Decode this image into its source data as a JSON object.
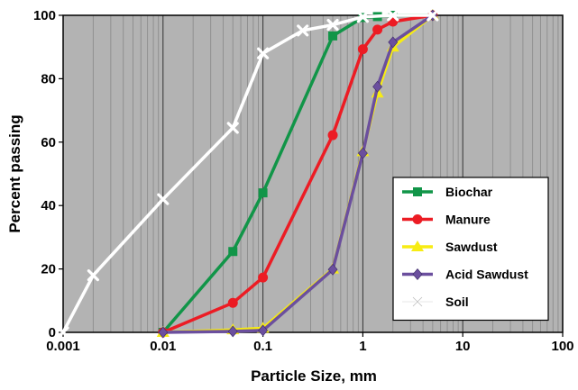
{
  "chart_data": {
    "type": "scatter",
    "xscale": "log",
    "xlim": [
      0.001,
      100
    ],
    "ylim": [
      0,
      100
    ],
    "xlabel": "Particle Size, mm",
    "ylabel": "Percent passing",
    "grid": true,
    "legend_position": "bottom-right",
    "colors": {
      "plot_background": "#b3b3b3",
      "grid_major": "#333333",
      "grid_minor": "#8c8c8c"
    },
    "x_ticks": [
      {
        "value": 0.001,
        "label": "0.001"
      },
      {
        "value": 0.01,
        "label": "0.01"
      },
      {
        "value": 0.1,
        "label": "0.1"
      },
      {
        "value": 1,
        "label": "1"
      },
      {
        "value": 10,
        "label": "10"
      },
      {
        "value": 100,
        "label": "100"
      }
    ],
    "y_ticks": [
      {
        "value": 0,
        "label": "0"
      },
      {
        "value": 20,
        "label": "20"
      },
      {
        "value": 40,
        "label": "40"
      },
      {
        "value": 60,
        "label": "60"
      },
      {
        "value": 80,
        "label": "80"
      },
      {
        "value": 100,
        "label": "100"
      }
    ],
    "series": [
      {
        "name": "Biochar",
        "color": "#119548",
        "marker": "square",
        "x": [
          0.01,
          0.05,
          0.1,
          0.5,
          1,
          1.4,
          2,
          5
        ],
        "y": [
          0,
          25.5,
          44,
          93.5,
          99.3,
          99.6,
          100,
          100
        ]
      },
      {
        "name": "Manure",
        "color": "#ec1c24",
        "marker": "circle",
        "x": [
          0.01,
          0.05,
          0.1,
          0.5,
          1,
          1.4,
          2,
          5
        ],
        "y": [
          0,
          9.3,
          17.3,
          62.2,
          89.3,
          95.5,
          98,
          100
        ]
      },
      {
        "name": "Sawdust",
        "color": "#f7ec13",
        "marker": "triangle",
        "x": [
          0.01,
          0.05,
          0.1,
          0.5,
          1,
          1.4,
          2,
          5
        ],
        "y": [
          0,
          0.8,
          1.3,
          20,
          57,
          75.5,
          90,
          100
        ]
      },
      {
        "name": "Acid Sawdust",
        "color": "#6b4f9e",
        "marker": "diamond",
        "x": [
          0.01,
          0.05,
          0.1,
          0.5,
          1,
          1.4,
          2,
          5
        ],
        "y": [
          0,
          0.3,
          0.6,
          19.8,
          56.5,
          77.5,
          91.5,
          100
        ]
      },
      {
        "name": "Soil",
        "color": "#ffffff",
        "marker": "x",
        "x": [
          0.001,
          0.002,
          0.01,
          0.05,
          0.1,
          0.25,
          0.5,
          1,
          2,
          5
        ],
        "y": [
          0,
          18,
          42,
          64.5,
          88,
          95.2,
          97,
          99.5,
          100,
          100
        ]
      }
    ]
  }
}
